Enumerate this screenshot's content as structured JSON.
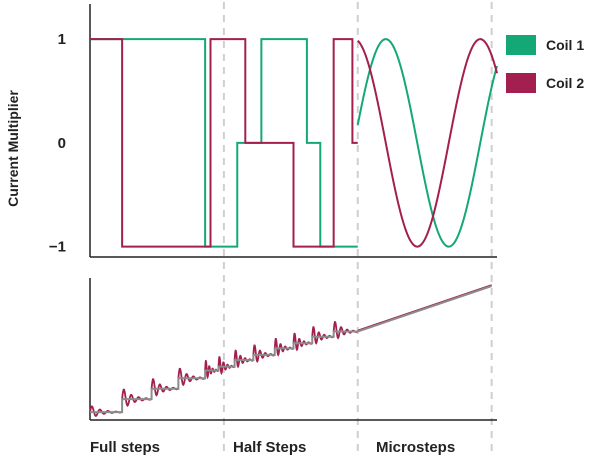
{
  "chart_data": [
    {
      "type": "line",
      "title": "",
      "ylabel": "Current Multiplier",
      "xlabel": "",
      "ylim": [
        -1.1,
        1.3
      ],
      "xlim": [
        0,
        15.2
      ],
      "yticks": [
        {
          "value": 1,
          "label": "1"
        },
        {
          "value": 0,
          "label": "0"
        },
        {
          "value": -1,
          "label": "−1"
        }
      ],
      "dividers": [
        5,
        10,
        15
      ],
      "grid": false,
      "legend_position": "right",
      "series": [
        {
          "name": "Coil 1",
          "color": "#13a876",
          "segments": [
            {
              "kind": "step",
              "x": [
                0,
                2,
                2.3,
                4.3,
                4.4,
                5,
                5.5,
                6.4,
                6.4,
                6.9,
                8.1,
                8.6,
                8.6,
                9.1,
                10
              ],
              "y": [
                1,
                1,
                1,
                -1,
                -1,
                -1,
                0,
                0,
                1,
                1,
                0,
                0,
                -1,
                -1,
                -1
              ]
            },
            {
              "kind": "sine",
              "x_start": 10,
              "x_end": 15.2,
              "phase_deg": 10,
              "cycles_per_unit": 0.2125,
              "func": "sin"
            }
          ]
        },
        {
          "name": "Coil 2",
          "color": "#a31f4f",
          "segments": [
            {
              "kind": "step",
              "x": [
                0,
                1.2,
                3,
                4.4,
                4.5,
                5,
                5.8,
                6,
                6.9,
                7.6,
                8.1,
                9.1,
                9.8,
                10
              ],
              "y": [
                1,
                -1,
                -1,
                -1,
                1,
                1,
                0,
                0,
                0,
                -1,
                -1,
                1,
                0,
                0
              ]
            },
            {
              "kind": "sine",
              "x_start": 10,
              "x_end": 15.2,
              "phase_deg": 10,
              "cycles_per_unit": 0.2125,
              "func": "cos"
            }
          ]
        }
      ]
    },
    {
      "type": "line",
      "title": "",
      "xlabel": "",
      "ylabel": "",
      "xlim": [
        0,
        15.2
      ],
      "ylim": [
        0,
        1
      ],
      "dividers": [
        5,
        10,
        15
      ],
      "grid": false,
      "x_regions": [
        {
          "label": "Full steps",
          "from": 0,
          "to": 5
        },
        {
          "label": "Half Steps",
          "from": 5,
          "to": 10
        },
        {
          "label": "Microsteps",
          "from": 10,
          "to": 15.2
        }
      ],
      "series": [
        {
          "name": "",
          "color": "#8c8c8c",
          "kind": "staircase",
          "steps": [
            {
              "x_from": 0,
              "x_to": 1.2,
              "y": 0.03
            },
            {
              "x_from": 1.2,
              "x_to": 2.3,
              "y": 0.13
            },
            {
              "x_from": 2.3,
              "x_to": 3.3,
              "y": 0.21
            },
            {
              "x_from": 3.3,
              "x_to": 4.3,
              "y": 0.29
            },
            {
              "x_from": 4.3,
              "x_to": 4.8,
              "y": 0.35
            },
            {
              "x_from": 4.8,
              "x_to": 5.4,
              "y": 0.38
            },
            {
              "x_from": 5.4,
              "x_to": 6.1,
              "y": 0.43
            },
            {
              "x_from": 6.1,
              "x_to": 6.9,
              "y": 0.47
            },
            {
              "x_from": 6.9,
              "x_to": 7.6,
              "y": 0.52
            },
            {
              "x_from": 7.6,
              "x_to": 8.3,
              "y": 0.56
            },
            {
              "x_from": 8.3,
              "x_to": 9.1,
              "y": 0.61
            },
            {
              "x_from": 9.1,
              "x_to": 10,
              "y": 0.65
            }
          ],
          "ramp": {
            "x_from": 10,
            "x_to": 15,
            "y_from": 0.65,
            "y_to": 1.0
          }
        },
        {
          "name": "",
          "color": "#a31f4f",
          "kind": "ringing",
          "ring_amplitude": 0.09,
          "ring_cycles": 4
        }
      ]
    }
  ]
}
